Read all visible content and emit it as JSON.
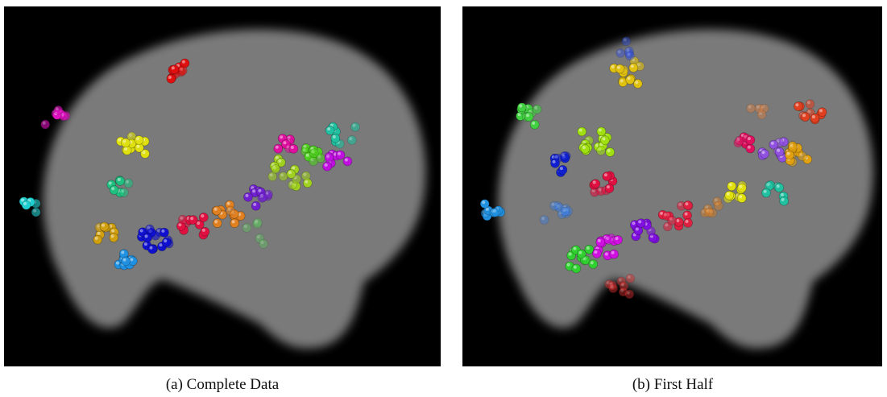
{
  "figure": {
    "panels": [
      {
        "caption": "(a) Complete Data"
      },
      {
        "caption": "(b) First Half"
      }
    ]
  }
}
